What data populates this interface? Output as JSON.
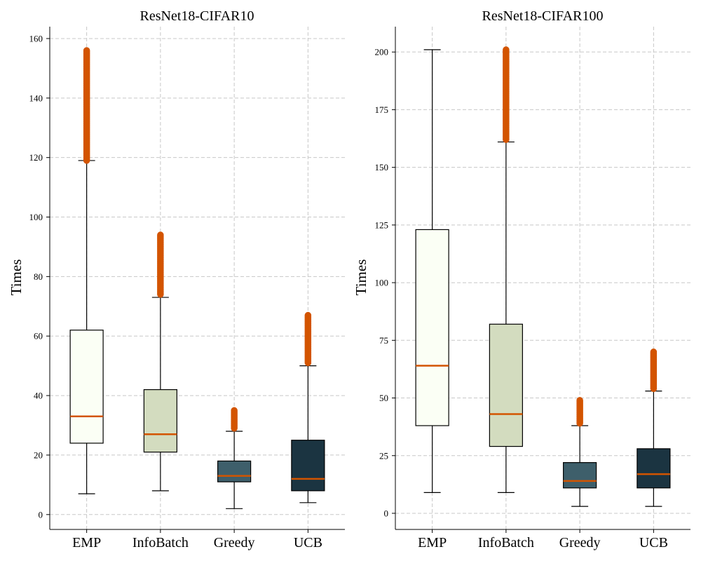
{
  "chart_data": [
    {
      "type": "box",
      "title": "ResNet18-CIFAR10",
      "xlabel": "",
      "ylabel": "Times",
      "ylim": [
        -5,
        164
      ],
      "yticks": [
        0,
        20,
        40,
        60,
        80,
        100,
        120,
        140,
        160
      ],
      "grid": true,
      "categories": [
        "EMP",
        "InfoBatch",
        "Greedy",
        "UCB"
      ],
      "colors": [
        "#fbfff5",
        "#d3dcbf",
        "#3e5f6b",
        "#1b3441"
      ],
      "median_color": "#d35400",
      "boxes": [
        {
          "whisker_low": 7,
          "q1": 24,
          "median": 33,
          "q3": 62,
          "whisker_high": 119,
          "outlier_range": [
            119,
            156
          ]
        },
        {
          "whisker_low": 8,
          "q1": 21,
          "median": 27,
          "q3": 42,
          "whisker_high": 73,
          "outlier_range": [
            74,
            94
          ]
        },
        {
          "whisker_low": 2,
          "q1": 11,
          "median": 13,
          "q3": 18,
          "whisker_high": 28,
          "outlier_range": [
            29,
            35
          ]
        },
        {
          "whisker_low": 4,
          "q1": 8,
          "median": 12,
          "q3": 25,
          "whisker_high": 50,
          "outlier_range": [
            51,
            67
          ]
        }
      ]
    },
    {
      "type": "box",
      "title": "ResNet18-CIFAR100",
      "xlabel": "",
      "ylabel": "Times",
      "ylim": [
        -7,
        211
      ],
      "yticks": [
        0,
        25,
        50,
        75,
        100,
        125,
        150,
        175,
        200
      ],
      "grid": true,
      "categories": [
        "EMP",
        "InfoBatch",
        "Greedy",
        "UCB"
      ],
      "colors": [
        "#fbfff5",
        "#d3dcbf",
        "#3e5f6b",
        "#1b3441"
      ],
      "median_color": "#d35400",
      "boxes": [
        {
          "whisker_low": 9,
          "q1": 38,
          "median": 64,
          "q3": 123,
          "whisker_high": 201,
          "outlier_range": null
        },
        {
          "whisker_low": 9,
          "q1": 29,
          "median": 43,
          "q3": 82,
          "whisker_high": 161,
          "outlier_range": [
            162,
            201
          ]
        },
        {
          "whisker_low": 3,
          "q1": 11,
          "median": 14,
          "q3": 22,
          "whisker_high": 38,
          "outlier_range": [
            39,
            49
          ]
        },
        {
          "whisker_low": 3,
          "q1": 11,
          "median": 17,
          "q3": 28,
          "whisker_high": 53,
          "outlier_range": [
            54,
            70
          ]
        }
      ]
    }
  ]
}
